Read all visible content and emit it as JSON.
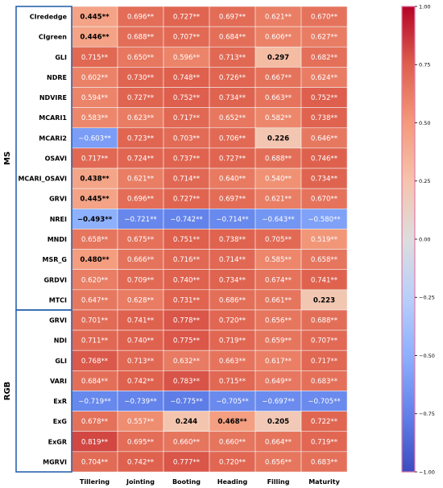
{
  "chart_data": {
    "type": "heatmap",
    "title": "",
    "xlabel": "",
    "ylabel": "",
    "columns": [
      "Tillering",
      "Jointing",
      "Booting",
      "Heading",
      "Filling",
      "Maturity"
    ],
    "rows": [
      {
        "group": "MS",
        "name": "CIrededge",
        "values": [
          0.445,
          0.696,
          0.727,
          0.697,
          0.621,
          0.67
        ],
        "labels": [
          "0.445**",
          "0.696**",
          "0.727**",
          "0.697**",
          "0.621**",
          "0.670**"
        ]
      },
      {
        "group": "MS",
        "name": "CIgreen",
        "values": [
          0.446,
          0.688,
          0.707,
          0.684,
          0.606,
          0.627
        ],
        "labels": [
          "0.446**",
          "0.688**",
          "0.707**",
          "0.684**",
          "0.606**",
          "0.627**"
        ]
      },
      {
        "group": "MS",
        "name": "GLI",
        "values": [
          0.715,
          0.65,
          0.596,
          0.713,
          0.297,
          0.682
        ],
        "labels": [
          "0.715**",
          "0.650**",
          "0.596**",
          "0.713**",
          "0.297",
          "0.682**"
        ]
      },
      {
        "group": "MS",
        "name": "NDRE",
        "values": [
          0.602,
          0.73,
          0.748,
          0.726,
          0.667,
          0.624
        ],
        "labels": [
          "0.602**",
          "0.730**",
          "0.748**",
          "0.726**",
          "0.667**",
          "0.624**"
        ]
      },
      {
        "group": "MS",
        "name": "NDVIRE",
        "values": [
          0.594,
          0.727,
          0.752,
          0.734,
          0.663,
          0.752
        ],
        "labels": [
          "0.594**",
          "0.727**",
          "0.752**",
          "0.734**",
          "0.663**",
          "0.752**"
        ]
      },
      {
        "group": "MS",
        "name": "MCARI1",
        "values": [
          0.583,
          0.623,
          0.717,
          0.652,
          0.582,
          0.738
        ],
        "labels": [
          "0.583**",
          "0.623**",
          "0.717**",
          "0.652**",
          "0.582**",
          "0.738**"
        ]
      },
      {
        "group": "MS",
        "name": "MCARI2",
        "values": [
          -0.603,
          0.723,
          0.703,
          0.706,
          0.226,
          0.646
        ],
        "labels": [
          "−0.603**",
          "0.723**",
          "0.703**",
          "0.706**",
          "0.226",
          "0.646**"
        ]
      },
      {
        "group": "MS",
        "name": "OSAVI",
        "values": [
          0.717,
          0.724,
          0.737,
          0.727,
          0.688,
          0.746
        ],
        "labels": [
          "0.717**",
          "0.724**",
          "0.737**",
          "0.727**",
          "0.688**",
          "0.746**"
        ]
      },
      {
        "group": "MS",
        "name": "MCARI_OSAVI",
        "values": [
          0.438,
          0.621,
          0.714,
          0.64,
          0.54,
          0.734
        ],
        "labels": [
          "0.438**",
          "0.621**",
          "0.714**",
          "0.640**",
          "0.540**",
          "0.734**"
        ]
      },
      {
        "group": "MS",
        "name": "GRVI",
        "values": [
          0.445,
          0.696,
          0.727,
          0.697,
          0.621,
          0.67
        ],
        "labels": [
          "0.445**",
          "0.696**",
          "0.727**",
          "0.697**",
          "0.621**",
          "0.670**"
        ]
      },
      {
        "group": "MS",
        "name": "NREI",
        "values": [
          -0.493,
          -0.721,
          -0.742,
          -0.714,
          -0.643,
          -0.58
        ],
        "labels": [
          "−0.493**",
          "−0.721**",
          "−0.742**",
          "−0.714**",
          "−0.643**",
          "−0.580**"
        ]
      },
      {
        "group": "MS",
        "name": "MNDI",
        "values": [
          0.658,
          0.675,
          0.751,
          0.738,
          0.705,
          0.519
        ],
        "labels": [
          "0.658**",
          "0.675**",
          "0.751**",
          "0.738**",
          "0.705**",
          "0.519**"
        ]
      },
      {
        "group": "MS",
        "name": "MSR_G",
        "values": [
          0.48,
          0.666,
          0.716,
          0.714,
          0.585,
          0.658
        ],
        "labels": [
          "0.480**",
          "0.666**",
          "0.716**",
          "0.714**",
          "0.585**",
          "0.658**"
        ]
      },
      {
        "group": "MS",
        "name": "GRDVI",
        "values": [
          0.62,
          0.709,
          0.74,
          0.734,
          0.674,
          0.741
        ],
        "labels": [
          "0.620**",
          "0.709**",
          "0.740**",
          "0.734**",
          "0.674**",
          "0.741**"
        ]
      },
      {
        "group": "MS",
        "name": "MTCI",
        "values": [
          0.647,
          0.628,
          0.731,
          0.686,
          0.661,
          0.223
        ],
        "labels": [
          "0.647**",
          "0.628**",
          "0.731**",
          "0.686**",
          "0.661**",
          "0.223"
        ]
      },
      {
        "group": "RGB",
        "name": "GRVI",
        "values": [
          0.701,
          0.741,
          0.778,
          0.72,
          0.656,
          0.688
        ],
        "labels": [
          "0.701**",
          "0.741**",
          "0.778**",
          "0.720**",
          "0.656**",
          "0.688**"
        ]
      },
      {
        "group": "RGB",
        "name": "NDI",
        "values": [
          0.711,
          0.74,
          0.775,
          0.719,
          0.659,
          0.707
        ],
        "labels": [
          "0.711**",
          "0.740**",
          "0.775**",
          "0.719**",
          "0.659**",
          "0.707**"
        ]
      },
      {
        "group": "RGB",
        "name": "GLI",
        "values": [
          0.768,
          0.713,
          0.632,
          0.663,
          0.617,
          0.717
        ],
        "labels": [
          "0.768**",
          "0.713**",
          "0.632**",
          "0.663**",
          "0.617**",
          "0.717**"
        ]
      },
      {
        "group": "RGB",
        "name": "VARI",
        "values": [
          0.684,
          0.742,
          0.783,
          0.715,
          0.649,
          0.683
        ],
        "labels": [
          "0.684**",
          "0.742**",
          "0.783**",
          "0.715**",
          "0.649**",
          "0.683**"
        ]
      },
      {
        "group": "RGB",
        "name": "ExR",
        "values": [
          -0.719,
          -0.739,
          -0.775,
          -0.705,
          -0.697,
          -0.705
        ],
        "labels": [
          "−0.719**",
          "−0.739**",
          "−0.775**",
          "−0.705**",
          "−0.697**",
          "−0.705**"
        ]
      },
      {
        "group": "RGB",
        "name": "ExG",
        "values": [
          0.678,
          0.557,
          0.244,
          0.468,
          0.205,
          0.722
        ],
        "labels": [
          "0.678**",
          "0.557**",
          "0.244",
          "0.468**",
          "0.205",
          "0.722**"
        ]
      },
      {
        "group": "RGB",
        "name": "ExGR",
        "values": [
          0.819,
          0.695,
          0.66,
          0.66,
          0.664,
          0.719
        ],
        "labels": [
          "0.819**",
          "0.695**",
          "0.660**",
          "0.660**",
          "0.664**",
          "0.719**"
        ]
      },
      {
        "group": "RGB",
        "name": "MGRVI",
        "values": [
          0.704,
          0.742,
          0.777,
          0.72,
          0.656,
          0.683
        ],
        "labels": [
          "0.704**",
          "0.742**",
          "0.777**",
          "0.720**",
          "0.656**",
          "0.683**"
        ]
      }
    ],
    "groups": [
      "MS",
      "RGB"
    ],
    "colorbar": {
      "colormap": "coolwarm",
      "range": [
        -1.0,
        1.0
      ],
      "ticks": [
        1.0,
        0.75,
        0.5,
        0.25,
        0.0,
        -0.25,
        -0.5,
        -0.75,
        -1.0
      ],
      "tick_labels": [
        "1.00",
        "0.75",
        "0.50",
        "0.25",
        "0.00",
        "−0.25",
        "−0.50",
        "−0.75",
        "−1.00"
      ],
      "placement": "right"
    },
    "colors": {
      "group_box": "#2a64ad",
      "colorbar_frame": "#e27aa8",
      "grid": "#f2f2f2"
    }
  }
}
